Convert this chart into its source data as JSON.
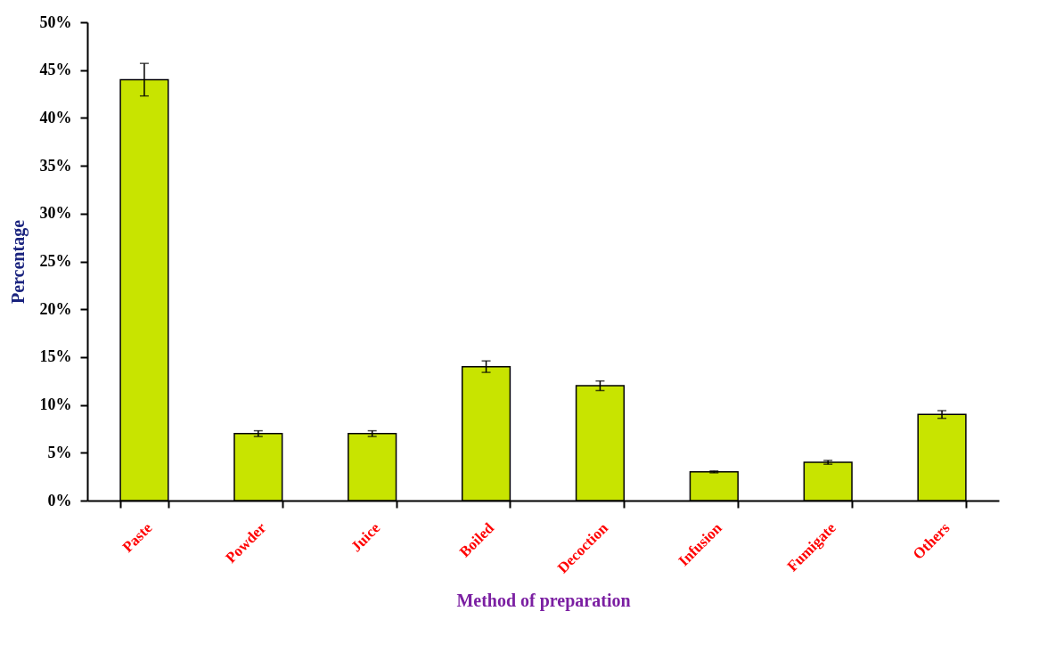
{
  "chart_data": {
    "type": "bar",
    "xlabel": "Method of preparation",
    "ylabel": "Percentage",
    "categories": [
      "Paste",
      "Powder",
      "Juice",
      "Boiled",
      "Decoction",
      "Infusion",
      "Fumigate",
      "Others"
    ],
    "values": [
      44,
      7,
      7,
      14,
      12,
      3,
      4,
      9
    ],
    "errors": [
      1.7,
      0.3,
      0.3,
      0.6,
      0.5,
      0.1,
      0.2,
      0.4
    ],
    "color": "#c8e400",
    "ylim": [
      0,
      50
    ],
    "yticks": [
      {
        "value": 0,
        "label": "0%"
      },
      {
        "value": 5,
        "label": "5%"
      },
      {
        "value": 10,
        "label": "10%"
      },
      {
        "value": 15,
        "label": "15%"
      },
      {
        "value": 20,
        "label": "20%"
      },
      {
        "value": 25,
        "label": "25%"
      },
      {
        "value": 30,
        "label": "30%"
      },
      {
        "value": 35,
        "label": "35%"
      },
      {
        "value": 40,
        "label": "40%"
      },
      {
        "value": 45,
        "label": "45%"
      },
      {
        "value": 50,
        "label": "50%"
      }
    ],
    "grid": false
  }
}
